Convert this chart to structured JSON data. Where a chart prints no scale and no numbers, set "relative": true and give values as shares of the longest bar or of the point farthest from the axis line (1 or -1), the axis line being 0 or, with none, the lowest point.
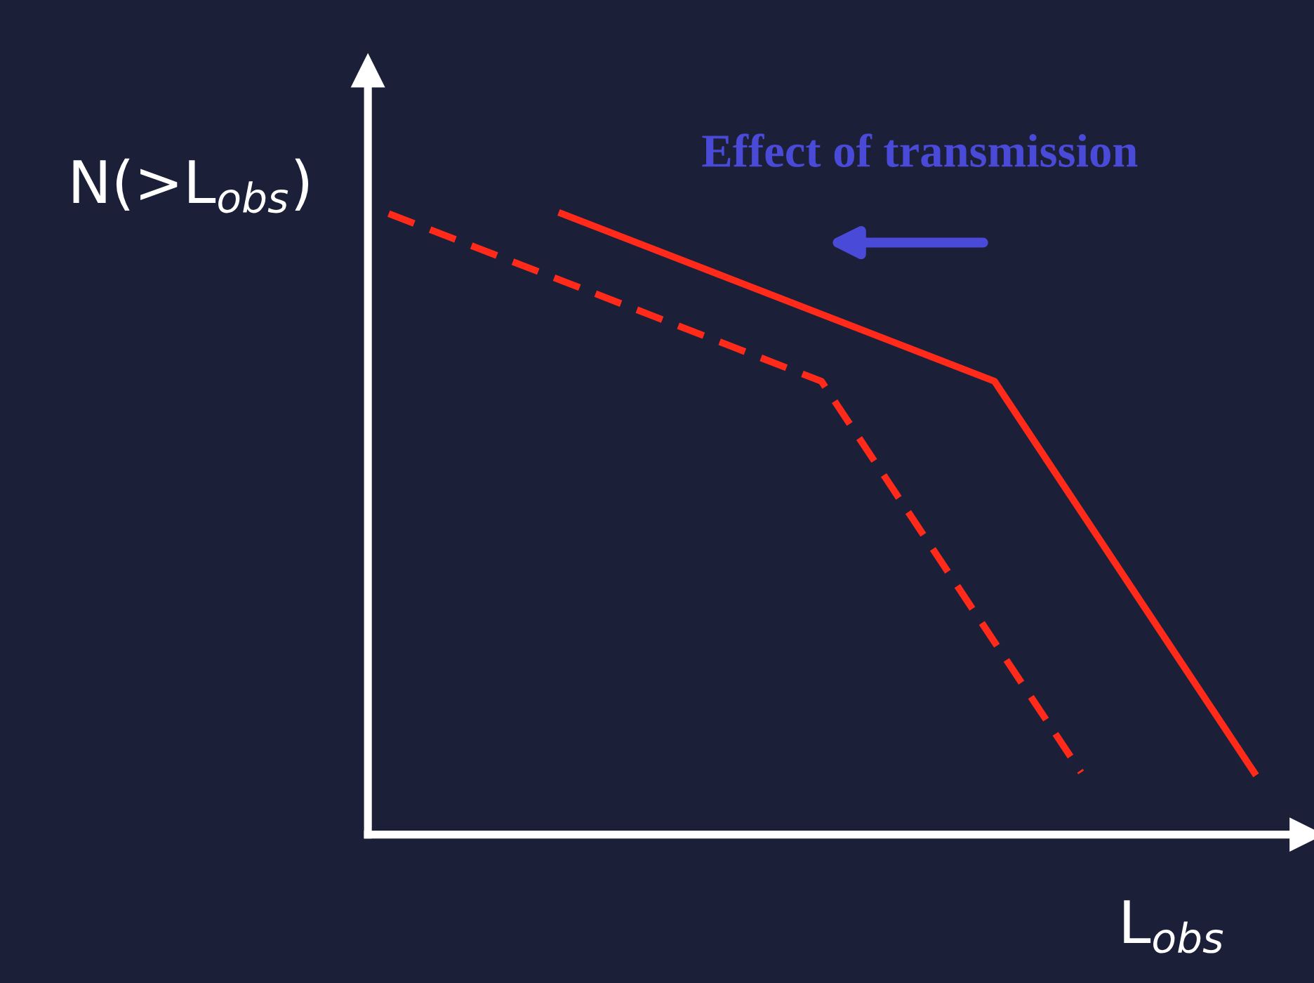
{
  "chart_data": {
    "type": "line",
    "relative": true,
    "xlabel": "L$_{obs}$",
    "ylabel": "N(>L$_{obs}$)",
    "annotations": [
      "Effect of transmission"
    ],
    "categories": [
      null,
      null,
      null,
      null,
      null,
      null,
      null,
      null,
      null,
      null,
      null
    ],
    "series": [
      {
        "values": [
          null,
          null,
          1.0,
          0.946,
          0.892,
          0.838,
          0.784,
          0.73,
          0.52,
          0.31,
          0.1
        ],
        "color": "#ff2a1a",
        "line_style": "solid"
      },
      {
        "values": [
          1.0,
          0.946,
          0.892,
          0.838,
          0.784,
          0.73,
          0.52,
          0.31,
          0.1,
          null,
          null
        ],
        "color": "#ff2a1a",
        "line_style": "dashed"
      }
    ]
  }
}
